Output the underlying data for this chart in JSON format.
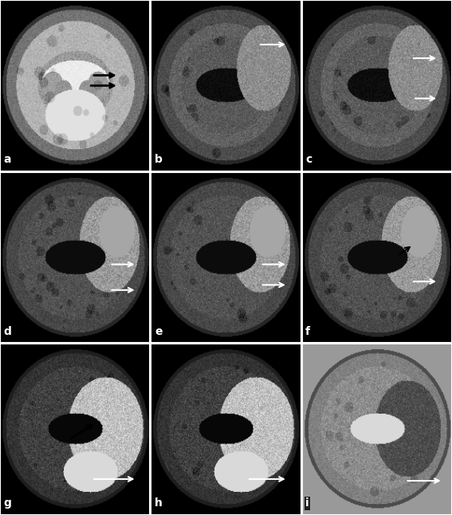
{
  "layout": {
    "rows": 3,
    "cols": 3,
    "figsize": [
      5.67,
      6.46
    ],
    "dpi": 100
  },
  "panels": [
    {
      "label": "a",
      "row": 0,
      "col": 0
    },
    {
      "label": "b",
      "row": 0,
      "col": 1
    },
    {
      "label": "c",
      "row": 0,
      "col": 2
    },
    {
      "label": "d",
      "row": 1,
      "col": 0
    },
    {
      "label": "e",
      "row": 1,
      "col": 1
    },
    {
      "label": "f",
      "row": 1,
      "col": 2
    },
    {
      "label": "g",
      "row": 2,
      "col": 0
    },
    {
      "label": "h",
      "row": 2,
      "col": 1
    },
    {
      "label": "i",
      "row": 2,
      "col": 2
    }
  ],
  "background_color": "#000000",
  "label_color": "#ffffff",
  "label_bg_color": "#000000",
  "label_fontsize": 10,
  "grid_linewidth": 1.5,
  "grid_color": "#ffffff",
  "styles": [
    "t2",
    "flair",
    "flair",
    "flair_lesion",
    "flair_lesion",
    "flair_lesion",
    "dwi",
    "dwi",
    "adc"
  ],
  "seeds": [
    0,
    1,
    2,
    3,
    4,
    5,
    6,
    7,
    8
  ]
}
